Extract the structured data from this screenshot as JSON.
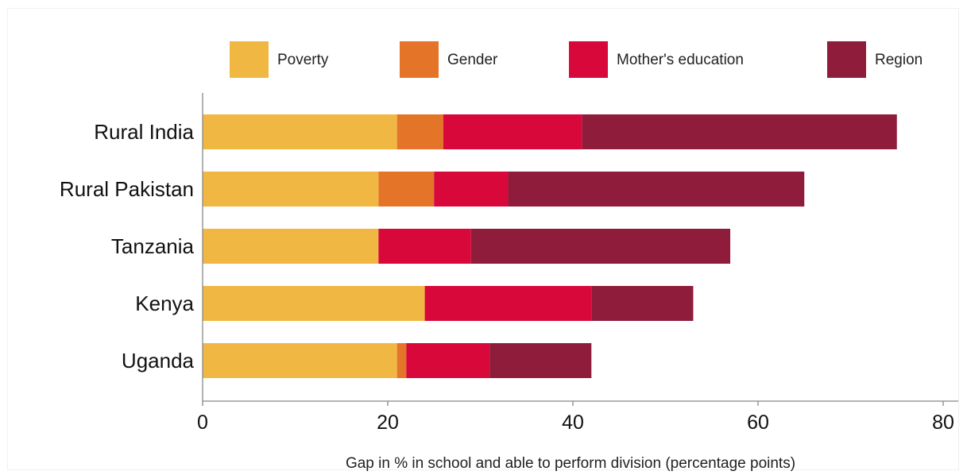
{
  "chart_data": {
    "type": "bar",
    "orientation": "horizontal",
    "stacked": true,
    "title": "",
    "xlabel": "Gap in % in school and able to perform division (percentage points)",
    "ylabel": "",
    "xlim": [
      0,
      80
    ],
    "xticks": [
      0,
      20,
      40,
      60,
      80
    ],
    "grid": false,
    "legend_position": "top",
    "categories": [
      "Rural India",
      "Rural Pakistan",
      "Tanzania",
      "Kenya",
      "Uganda"
    ],
    "series": [
      {
        "name": "Poverty",
        "color": "#f0b843",
        "values": [
          21,
          19,
          19,
          24,
          21
        ]
      },
      {
        "name": "Gender",
        "color": "#e47427",
        "values": [
          5,
          6,
          0,
          0,
          1
        ]
      },
      {
        "name": "Mother's education",
        "color": "#d8083a",
        "values": [
          15,
          8,
          10,
          18,
          9
        ]
      },
      {
        "name": "Region",
        "color": "#8f1c3b",
        "values": [
          34,
          32,
          28,
          11,
          11
        ]
      }
    ]
  }
}
